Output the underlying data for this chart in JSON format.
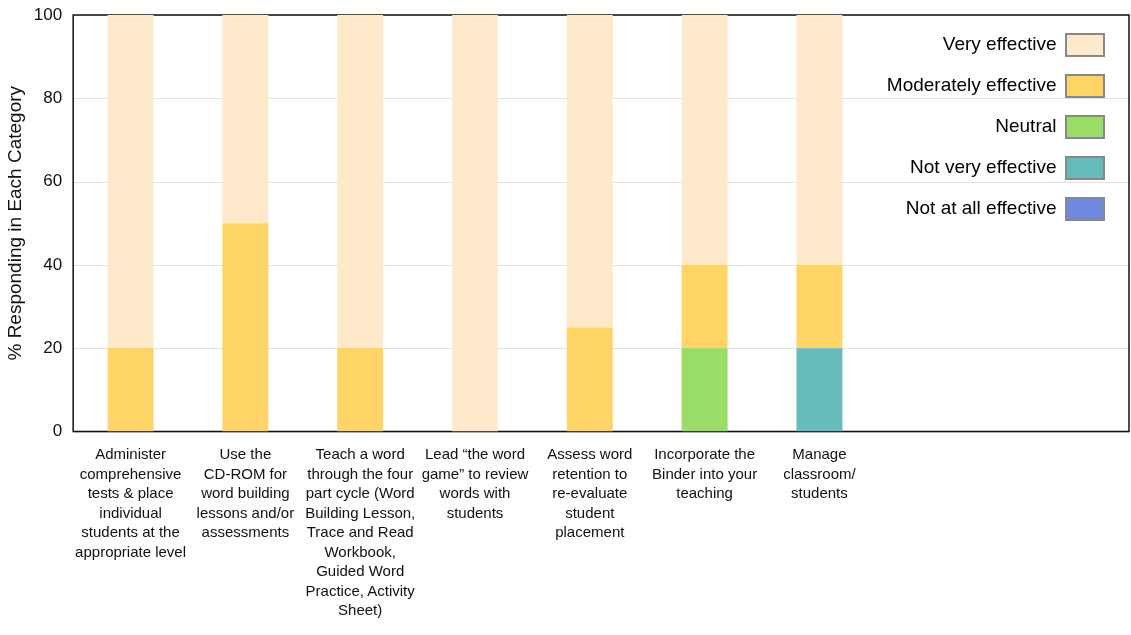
{
  "chart_data": {
    "type": "bar",
    "stacked": true,
    "ylabel": "% Responding in Each Category",
    "categories": [
      "Administer comprehensive tests & place individual students at the appropriate level",
      "Use the CD-ROM for word building lessons and/or assessments",
      "Teach a word through the four part cycle (Word Building Lesson, Trace and Read Workbook, Guided Word Practice, Activity Sheet)",
      "Lead “the word game” to review words with students",
      "Assess word retention to re-evaluate student placement",
      "Incorporate the Binder into your teaching",
      "Manage classroom/ students"
    ],
    "series": [
      {
        "name": "Not at all effective",
        "color": "#6f88e0",
        "values": [
          0,
          0,
          0,
          0,
          0,
          0,
          0
        ]
      },
      {
        "name": "Not very effective",
        "color": "#66bbbb",
        "values": [
          0,
          0,
          0,
          0,
          0,
          0,
          20
        ]
      },
      {
        "name": "Neutral",
        "color": "#99dd66",
        "values": [
          0,
          0,
          0,
          0,
          0,
          20,
          0
        ]
      },
      {
        "name": "Moderately effective",
        "color": "#ffd466",
        "values": [
          20,
          50,
          20,
          0,
          25,
          20,
          20
        ]
      },
      {
        "name": "Very effective",
        "color": "#feeacb",
        "values": [
          80,
          50,
          80,
          100,
          75,
          60,
          60
        ]
      }
    ],
    "ylim": [
      0,
      100
    ],
    "yticks": [
      0,
      20,
      40,
      60,
      80,
      100
    ],
    "grid": "y",
    "legend": "top right"
  }
}
